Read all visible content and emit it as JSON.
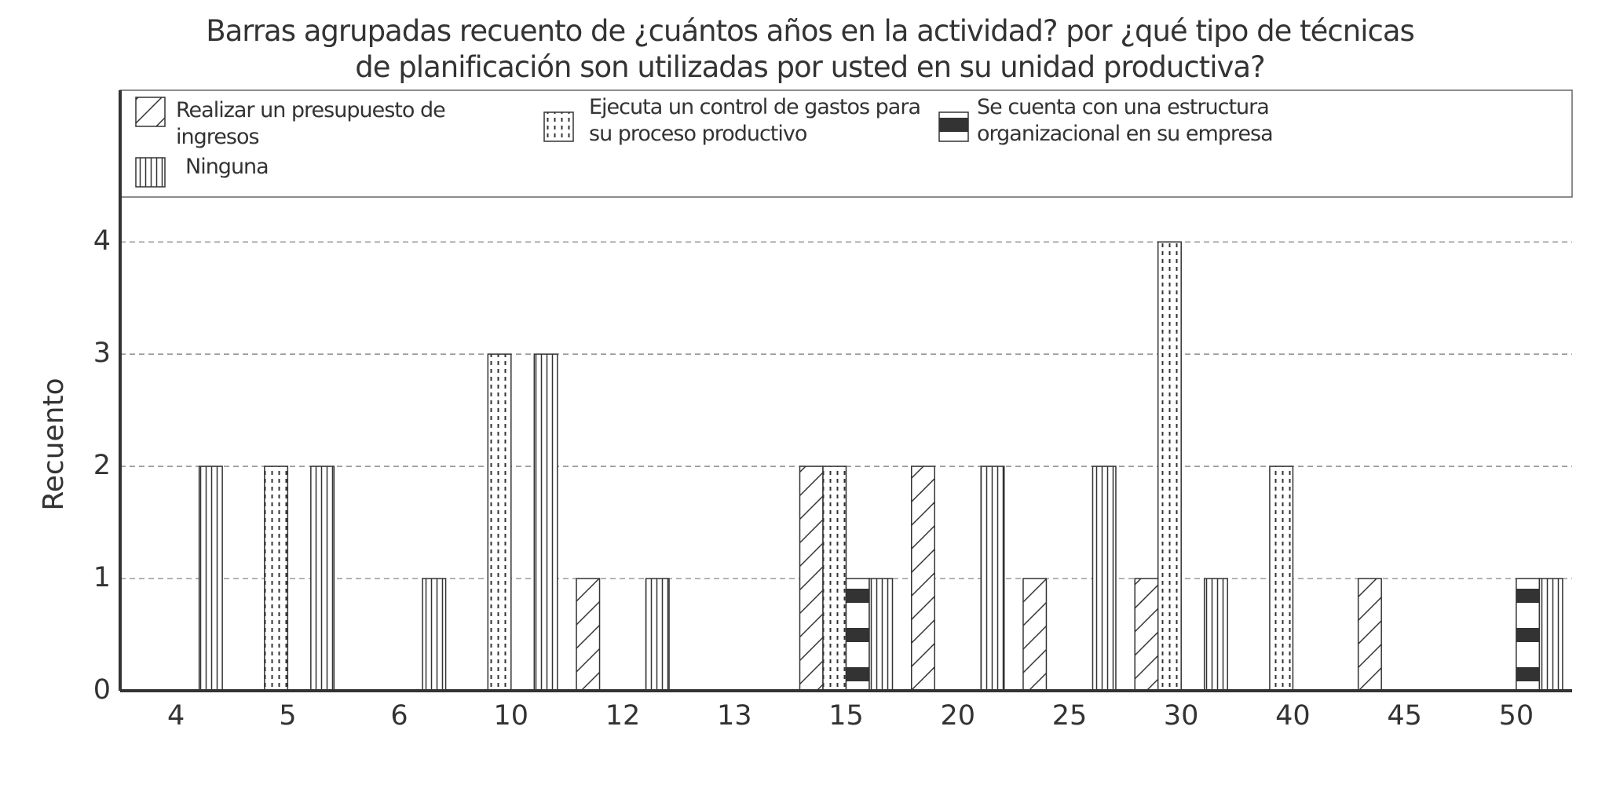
{
  "chart_data": {
    "type": "bar",
    "title": [
      "Barras agrupadas recuento de ¿cuántos años en la actividad? por ¿qué tipo de técnicas",
      "de planificación son utilizadas por usted en su unidad productiva?"
    ],
    "y_label": "Recuento",
    "categories": [
      "4",
      "5",
      "6",
      "10",
      "12",
      "13",
      "15",
      "20",
      "25",
      "30",
      "40",
      "45",
      "50"
    ],
    "series": [
      {
        "name": "Realizar un presupuesto de ingresos",
        "color": "#333333",
        "pattern": "diagonal",
        "values": [
          null,
          null,
          null,
          null,
          1,
          null,
          2,
          2,
          1,
          1,
          null,
          1,
          null
        ]
      },
      {
        "name": "Ejecuta un control de gastos para su proceso productivo",
        "color": "#333333",
        "pattern": "dotted",
        "values": [
          null,
          2,
          null,
          3,
          null,
          null,
          2,
          null,
          null,
          4,
          2,
          null,
          null
        ]
      },
      {
        "name": "Se cuenta con una estructura organizacional en su empresa",
        "color": "#333333",
        "pattern": "bands",
        "values": [
          null,
          null,
          null,
          null,
          null,
          null,
          1,
          null,
          null,
          null,
          null,
          null,
          1
        ]
      },
      {
        "name": "Ninguna",
        "color": "#333333",
        "pattern": "vertical",
        "values": [
          2,
          2,
          1,
          3,
          1,
          null,
          1,
          2,
          2,
          1,
          null,
          null,
          1
        ]
      }
    ],
    "ylim": [
      0,
      4.4
    ],
    "yticks": [
      0,
      1,
      2,
      3,
      4
    ],
    "grid": true
  }
}
